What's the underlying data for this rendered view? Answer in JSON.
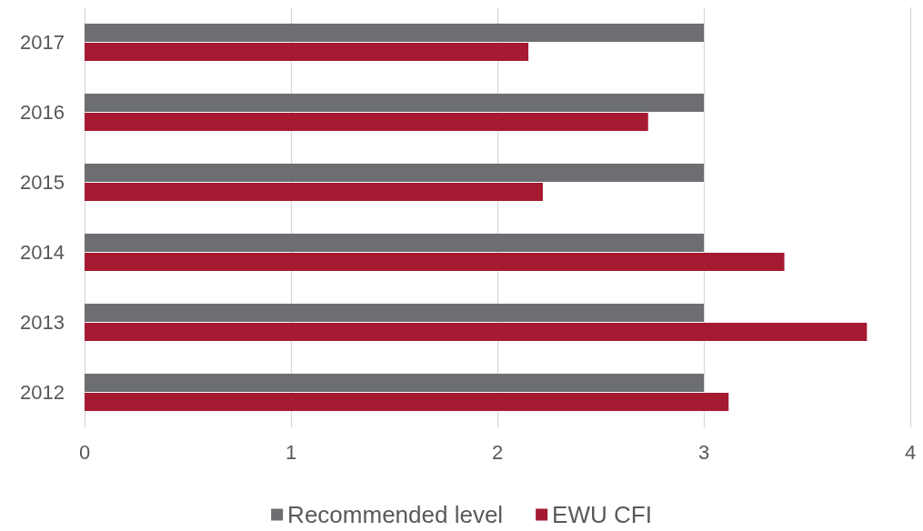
{
  "chart_data": {
    "type": "bar",
    "orientation": "horizontal",
    "categories": [
      "2017",
      "2016",
      "2015",
      "2014",
      "2013",
      "2012"
    ],
    "series": [
      {
        "name": "Recommended level",
        "color": "#6d6e71",
        "values": [
          3,
          3,
          3,
          3,
          3,
          3
        ]
      },
      {
        "name": "EWU CFI",
        "color": "#a51931",
        "values": [
          2.15,
          2.73,
          2.22,
          3.39,
          3.79,
          3.12
        ]
      }
    ],
    "xlim": [
      0,
      4
    ],
    "xticks": [
      0,
      1,
      2,
      3,
      4
    ],
    "grid": "x",
    "legend": "bottom"
  }
}
